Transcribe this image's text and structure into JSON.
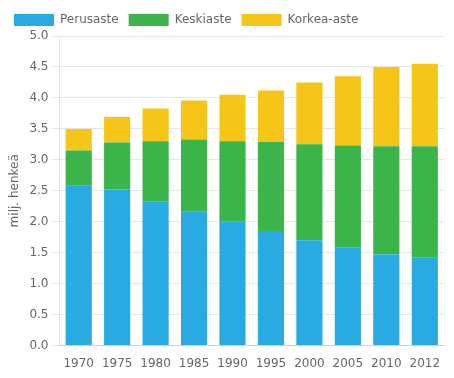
{
  "chart_data": {
    "type": "bar",
    "stacked": true,
    "categories": [
      "1970",
      "1975",
      "1980",
      "1985",
      "1990",
      "1995",
      "2000",
      "2005",
      "2010",
      "2012"
    ],
    "series": [
      {
        "name": "Perusaste",
        "color": "#29ABE2",
        "values": [
          2.58,
          2.52,
          2.33,
          2.16,
          2.0,
          1.85,
          1.7,
          1.58,
          1.47,
          1.42
        ]
      },
      {
        "name": "Keskiaste",
        "color": "#3BB44A",
        "values": [
          0.57,
          0.76,
          0.97,
          1.17,
          1.3,
          1.44,
          1.55,
          1.65,
          1.75,
          1.8
        ]
      },
      {
        "name": "Korkea-aste",
        "color": "#F5C518",
        "values": [
          0.35,
          0.41,
          0.53,
          0.63,
          0.75,
          0.83,
          1.0,
          1.12,
          1.28,
          1.33
        ]
      }
    ],
    "ylabel": "milj. henkeä",
    "ylim": [
      0.0,
      5.0
    ],
    "yticks": [
      {
        "value": 0.0,
        "label": "0.0"
      },
      0.5,
      {
        "value": 1.0,
        "label": "1.0"
      },
      1.5,
      {
        "value": 2.0,
        "label": "2.0"
      },
      2.5,
      {
        "value": 3.0,
        "label": "3.0"
      },
      3.5,
      {
        "value": 4.0,
        "label": "4.0"
      },
      4.5,
      {
        "value": 5.0,
        "label": "5.0"
      }
    ],
    "grid": true,
    "legend": "upper left"
  }
}
